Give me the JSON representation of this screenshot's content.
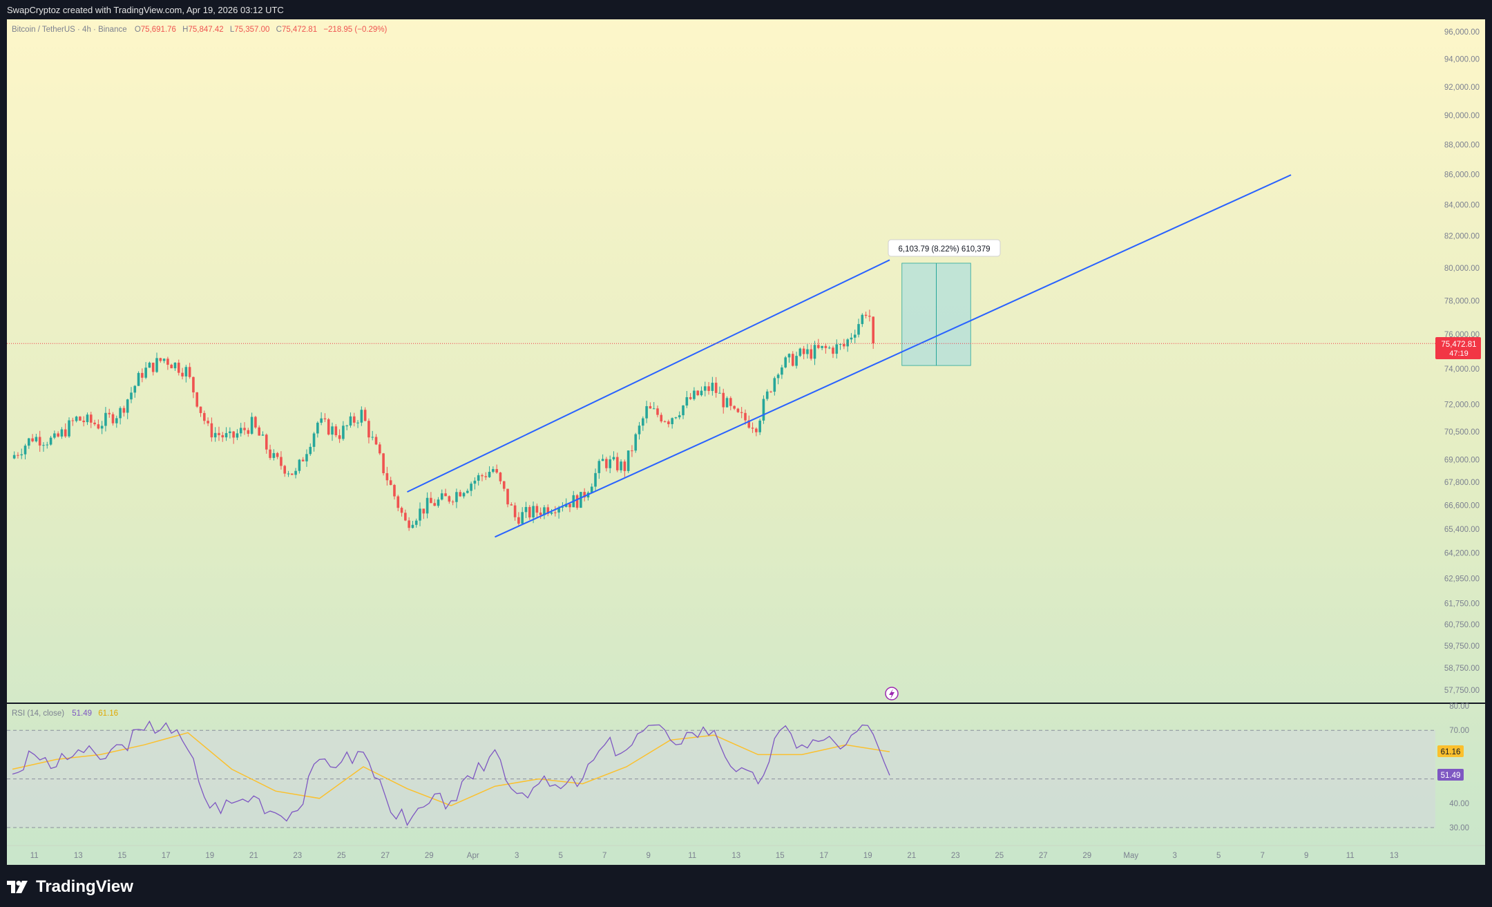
{
  "header": {
    "credit": "SwapCryptoz created with TradingView.com, Apr 19, 2026 03:12 UTC"
  },
  "legend": {
    "symbol": "Bitcoin / TetherUS · 4h · Binance",
    "open_label": "O",
    "open": "75,691.76",
    "high_label": "H",
    "high": "75,847.42",
    "low_label": "L",
    "low": "75,357.00",
    "close_label": "C",
    "close": "75,472.81",
    "change": "−218.95 (−0.29%)"
  },
  "price_axis": {
    "ticks": [
      "96,000.00",
      "94,000.00",
      "92,000.00",
      "90,000.00",
      "88,000.00",
      "86,000.00",
      "84,000.00",
      "82,000.00",
      "80,000.00",
      "78,000.00",
      "76,000.00",
      "74,000.00",
      "72,000.00",
      "70,500.00",
      "69,000.00",
      "67,800.00",
      "66,600.00",
      "65,400.00",
      "64,200.00",
      "62,950.00",
      "61,750.00",
      "60,750.00",
      "59,750.00",
      "58,750.00",
      "57,750.00"
    ],
    "current_price": "75,472.81",
    "countdown": "47:19"
  },
  "measure_label": "6,103.79 (8.22%) 610,379",
  "rsi": {
    "title": "RSI (14, close)",
    "value": "51.49",
    "ma_value": "61.16",
    "ticks": [
      "80.00",
      "70.00",
      "40.00",
      "30.00"
    ],
    "value_color": "#7e57c2",
    "ma_color": "#fbc02d"
  },
  "time_axis": [
    "11",
    "13",
    "15",
    "17",
    "19",
    "21",
    "23",
    "25",
    "27",
    "29",
    "Apr",
    "3",
    "5",
    "7",
    "9",
    "11",
    "13",
    "15",
    "17",
    "19",
    "21",
    "23",
    "25",
    "27",
    "29",
    "May",
    "3",
    "5",
    "7",
    "9",
    "11",
    "13"
  ],
  "footer": {
    "brand": "TradingView"
  },
  "colors": {
    "up": "#26a69a",
    "down": "#ef5350",
    "channel": "#2962ff",
    "target_box": "#b2dfdb"
  },
  "chart_data": {
    "type": "candlestick",
    "title": "Bitcoin / TetherUS · 4h · Binance",
    "timeframe": "4h",
    "x_range": [
      "Mar 10",
      "May 14"
    ],
    "ylim": [
      57000,
      97000
    ],
    "y_scale": "log",
    "grid": false,
    "closes_by_day": [
      {
        "x": "Mar 10",
        "y": 69200
      },
      {
        "x": "Mar 11",
        "y": 70200
      },
      {
        "x": "Mar 12",
        "y": 70000
      },
      {
        "x": "Mar 13",
        "y": 71200
      },
      {
        "x": "Mar 14",
        "y": 70900
      },
      {
        "x": "Mar 15",
        "y": 71600
      },
      {
        "x": "Mar 16",
        "y": 73800
      },
      {
        "x": "Mar 17",
        "y": 74600
      },
      {
        "x": "Mar 18",
        "y": 73900
      },
      {
        "x": "Mar 19",
        "y": 70600
      },
      {
        "x": "Mar 20",
        "y": 70100
      },
      {
        "x": "Mar 21",
        "y": 70900
      },
      {
        "x": "Mar 22",
        "y": 69000
      },
      {
        "x": "Mar 23",
        "y": 68200
      },
      {
        "x": "Mar 24",
        "y": 71000
      },
      {
        "x": "Mar 25",
        "y": 70400
      },
      {
        "x": "Mar 26",
        "y": 71500
      },
      {
        "x": "Mar 27",
        "y": 68500
      },
      {
        "x": "Mar 28",
        "y": 65700
      },
      {
        "x": "Mar 29",
        "y": 66600
      },
      {
        "x": "Mar 30",
        "y": 67000
      },
      {
        "x": "Mar 31",
        "y": 67800
      },
      {
        "x": "Apr 1",
        "y": 68500
      },
      {
        "x": "Apr 2",
        "y": 66000
      },
      {
        "x": "Apr 3",
        "y": 66300
      },
      {
        "x": "Apr 4",
        "y": 66700
      },
      {
        "x": "Apr 5",
        "y": 66900
      },
      {
        "x": "Apr 6",
        "y": 68900
      },
      {
        "x": "Apr 7",
        "y": 68600
      },
      {
        "x": "Apr 8",
        "y": 71700
      },
      {
        "x": "Apr 9",
        "y": 71200
      },
      {
        "x": "Apr 10",
        "y": 72300
      },
      {
        "x": "Apr 11",
        "y": 73000
      },
      {
        "x": "Apr 12",
        "y": 71400
      },
      {
        "x": "Apr 13",
        "y": 70900
      },
      {
        "x": "Apr 14",
        "y": 74100
      },
      {
        "x": "Apr 15",
        "y": 74800
      },
      {
        "x": "Apr 16",
        "y": 75100
      },
      {
        "x": "Apr 17",
        "y": 75300
      },
      {
        "x": "Apr 18",
        "y": 77400
      },
      {
        "x": "Apr 19",
        "y": 75472.81
      }
    ],
    "channel": {
      "upper": [
        {
          "x": "Mar 28",
          "y": 67300
        },
        {
          "x": "Apr 19",
          "y": 80500
        }
      ],
      "lower": [
        {
          "x": "Apr 1",
          "y": 65000
        },
        {
          "x": "Apr 23",
          "y": 77000
        }
      ]
    },
    "measure_box": {
      "x_start": "Apr 20",
      "x_end": "Apr 22",
      "y_low": 74200,
      "y_high": 80300,
      "change": 6103.79,
      "change_pct": 8.22
    },
    "rsi_series": [
      {
        "x": "Mar 10",
        "y": 52
      },
      {
        "x": "Mar 11",
        "y": 60
      },
      {
        "x": "Mar 12",
        "y": 55
      },
      {
        "x": "Mar 13",
        "y": 62
      },
      {
        "x": "Mar 14",
        "y": 58
      },
      {
        "x": "Mar 15",
        "y": 64
      },
      {
        "x": "Mar 16",
        "y": 70
      },
      {
        "x": "Mar 17",
        "y": 73
      },
      {
        "x": "Mar 18",
        "y": 62
      },
      {
        "x": "Mar 19",
        "y": 38
      },
      {
        "x": "Mar 20",
        "y": 40
      },
      {
        "x": "Mar 21",
        "y": 43
      },
      {
        "x": "Mar 22",
        "y": 36
      },
      {
        "x": "Mar 23",
        "y": 37
      },
      {
        "x": "Mar 24",
        "y": 58
      },
      {
        "x": "Mar 25",
        "y": 57
      },
      {
        "x": "Mar 26",
        "y": 61
      },
      {
        "x": "Mar 27",
        "y": 43
      },
      {
        "x": "Mar 28",
        "y": 31
      },
      {
        "x": "Mar 29",
        "y": 40
      },
      {
        "x": "Mar 30",
        "y": 41
      },
      {
        "x": "Mar 31",
        "y": 50
      },
      {
        "x": "Apr 1",
        "y": 62
      },
      {
        "x": "Apr 2",
        "y": 44
      },
      {
        "x": "Apr 3",
        "y": 48
      },
      {
        "x": "Apr 4",
        "y": 46
      },
      {
        "x": "Apr 5",
        "y": 50
      },
      {
        "x": "Apr 6",
        "y": 64
      },
      {
        "x": "Apr 7",
        "y": 62
      },
      {
        "x": "Apr 8",
        "y": 72
      },
      {
        "x": "Apr 9",
        "y": 66
      },
      {
        "x": "Apr 10",
        "y": 69
      },
      {
        "x": "Apr 11",
        "y": 70
      },
      {
        "x": "Apr 12",
        "y": 53
      },
      {
        "x": "Apr 13",
        "y": 48
      },
      {
        "x": "Apr 14",
        "y": 70
      },
      {
        "x": "Apr 15",
        "y": 64
      },
      {
        "x": "Apr 16",
        "y": 66
      },
      {
        "x": "Apr 17",
        "y": 64
      },
      {
        "x": "Apr 18",
        "y": 72
      },
      {
        "x": "Apr 19",
        "y": 51.49
      }
    ],
    "rsi_ma_series": [
      {
        "x": "Mar 10",
        "y": 54
      },
      {
        "x": "Mar 12",
        "y": 58
      },
      {
        "x": "Mar 14",
        "y": 60
      },
      {
        "x": "Mar 16",
        "y": 64
      },
      {
        "x": "Mar 18",
        "y": 69
      },
      {
        "x": "Mar 20",
        "y": 54
      },
      {
        "x": "Mar 22",
        "y": 45
      },
      {
        "x": "Mar 24",
        "y": 42
      },
      {
        "x": "Mar 26",
        "y": 55
      },
      {
        "x": "Mar 28",
        "y": 46
      },
      {
        "x": "Mar 30",
        "y": 39
      },
      {
        "x": "Apr 1",
        "y": 47
      },
      {
        "x": "Apr 3",
        "y": 50
      },
      {
        "x": "Apr 5",
        "y": 48
      },
      {
        "x": "Apr 7",
        "y": 55
      },
      {
        "x": "Apr 9",
        "y": 66
      },
      {
        "x": "Apr 11",
        "y": 68
      },
      {
        "x": "Apr 13",
        "y": 60
      },
      {
        "x": "Apr 15",
        "y": 60
      },
      {
        "x": "Apr 17",
        "y": 64
      },
      {
        "x": "Apr 19",
        "y": 61.16
      }
    ],
    "rsi_levels": [
      70,
      50,
      30
    ]
  }
}
